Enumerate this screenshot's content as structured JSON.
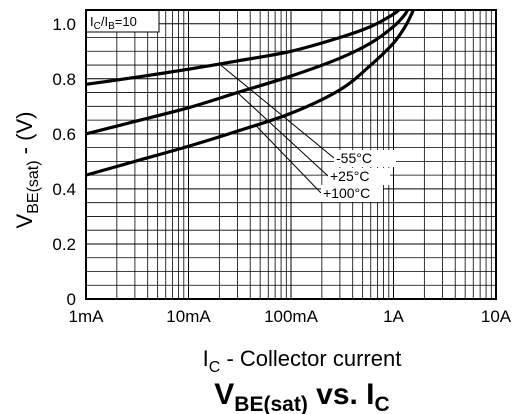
{
  "chart_data": {
    "type": "line",
    "title": "V",
    "title_sub": "BE(sat)",
    "title_mid": " vs. I",
    "title_sub2": "C",
    "xlabel": "I",
    "xlabel_sub": "C",
    "xlabel_rest": " - Collector current",
    "ylabel": "V",
    "ylabel_sub": "BE(sat)",
    "ylabel_rest": " - (V)",
    "condition": {
      "a": "I",
      "a_sub": "C",
      "sep": "/I",
      "b_sub": "B",
      "rest": "=10"
    },
    "x_scale": "log",
    "x_unit": "A",
    "xlim": [
      0.001,
      10
    ],
    "ylim": [
      0,
      1.05
    ],
    "x_ticks": [
      0.001,
      0.01,
      0.1,
      1,
      10
    ],
    "x_tick_labels": [
      "1mA",
      "10mA",
      "100mA",
      "1A",
      "10A"
    ],
    "y_ticks": [
      0,
      0.2,
      0.4,
      0.6,
      0.8,
      1.0
    ],
    "y_tick_labels": [
      "0",
      "0.2",
      "0.4",
      "0.6",
      "0.8",
      "1.0"
    ],
    "grid": true,
    "series": [
      {
        "name": "-55°C",
        "x": [
          0.001,
          0.003,
          0.01,
          0.03,
          0.1,
          0.3,
          0.6,
          1.0,
          1.2
        ],
        "y": [
          0.78,
          0.805,
          0.835,
          0.865,
          0.9,
          0.95,
          0.99,
          1.035,
          1.06
        ]
      },
      {
        "name": "+25°C",
        "x": [
          0.001,
          0.003,
          0.01,
          0.03,
          0.1,
          0.3,
          0.6,
          1.0,
          1.3,
          1.4
        ],
        "y": [
          0.6,
          0.645,
          0.695,
          0.75,
          0.81,
          0.875,
          0.93,
          0.99,
          1.035,
          1.06
        ]
      },
      {
        "name": "+100°C",
        "x": [
          0.001,
          0.003,
          0.01,
          0.03,
          0.1,
          0.3,
          0.6,
          1.0,
          1.3,
          1.5,
          1.6
        ],
        "y": [
          0.45,
          0.5,
          0.555,
          0.61,
          0.675,
          0.76,
          0.85,
          0.93,
          0.99,
          1.035,
          1.06
        ]
      }
    ]
  }
}
